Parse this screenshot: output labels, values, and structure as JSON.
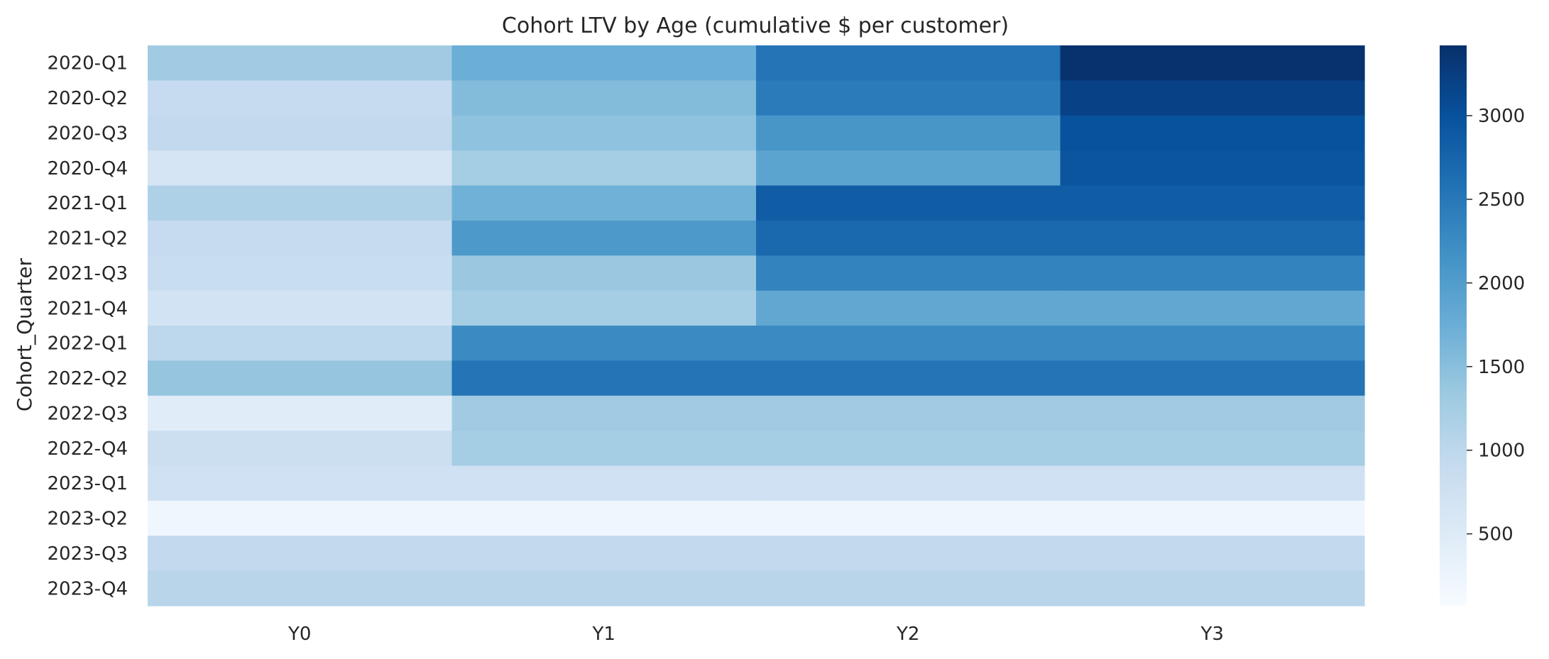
{
  "chart_data": {
    "type": "heatmap",
    "title": "Cohort LTV by Age (cumulative $ per customer)",
    "xlabel": "",
    "ylabel": "Cohort_Quarter",
    "columns": [
      "Y0",
      "Y1",
      "Y2",
      "Y3"
    ],
    "rows": [
      "2020-Q1",
      "2020-Q2",
      "2020-Q3",
      "2020-Q4",
      "2021-Q1",
      "2021-Q2",
      "2021-Q3",
      "2021-Q4",
      "2022-Q1",
      "2022-Q2",
      "2022-Q3",
      "2022-Q4",
      "2023-Q1",
      "2023-Q2",
      "2023-Q3",
      "2023-Q4"
    ],
    "values": [
      [
        1300,
        1750,
        2550,
        3400
      ],
      [
        900,
        1550,
        2450,
        3200
      ],
      [
        950,
        1450,
        2100,
        3000
      ],
      [
        650,
        1250,
        1900,
        2950
      ],
      [
        1150,
        1700,
        2850,
        2850
      ],
      [
        900,
        2050,
        2700,
        2700
      ],
      [
        850,
        1350,
        2350,
        2350
      ],
      [
        700,
        1250,
        1850,
        1850
      ],
      [
        1000,
        2250,
        2250,
        2250
      ],
      [
        1400,
        2550,
        2550,
        2550
      ],
      [
        450,
        1300,
        1300,
        1300
      ],
      [
        800,
        1250,
        1250,
        1250
      ],
      [
        750,
        750,
        750,
        750
      ],
      [
        200,
        200,
        200,
        200
      ],
      [
        950,
        950,
        950,
        950
      ],
      [
        1050,
        1050,
        1050,
        1050
      ]
    ],
    "colormap": "Blues",
    "vmin": 70,
    "vmax": 3420,
    "colorbar_ticks": [
      500,
      1000,
      1500,
      2000,
      2500,
      3000
    ],
    "legend": "colorbar-right"
  }
}
